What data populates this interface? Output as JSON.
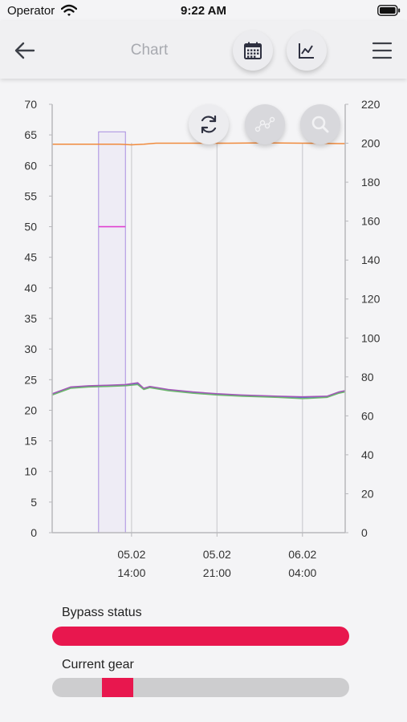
{
  "status_bar": {
    "operator": "Operator",
    "time": "9:22 AM"
  },
  "nav": {
    "title": "Chart",
    "icons": [
      "back-arrow-icon",
      "calendar-icon",
      "line-chart-icon",
      "hamburger-menu-icon"
    ]
  },
  "chart_controls": {
    "icons": [
      "refresh-icon",
      "data-points-icon",
      "zoom-icon"
    ]
  },
  "chart_data": {
    "type": "line",
    "y_left": {
      "min": 0,
      "max": 70,
      "ticks": [
        0,
        5,
        10,
        15,
        20,
        25,
        30,
        35,
        40,
        45,
        50,
        55,
        60,
        65,
        70
      ]
    },
    "y_right": {
      "min": 0,
      "max": 220,
      "ticks": [
        0,
        20,
        40,
        60,
        80,
        100,
        120,
        140,
        160,
        180,
        200,
        220
      ]
    },
    "x": {
      "min": 7.5,
      "max": 31.5,
      "unit": "hours",
      "ticks": [
        {
          "x": 14,
          "date": "05.02",
          "time": "14:00"
        },
        {
          "x": 21,
          "date": "05.02",
          "time": "21:00"
        },
        {
          "x": 28,
          "date": "06.02",
          "time": "04:00"
        }
      ]
    },
    "series": [
      {
        "color": "#f08a3c",
        "axis": "right",
        "points": [
          [
            7.5,
            199.5
          ],
          [
            10,
            199.5
          ],
          [
            12,
            199.5
          ],
          [
            13,
            199.5
          ],
          [
            14,
            199.2
          ],
          [
            15,
            199.5
          ],
          [
            16,
            200
          ],
          [
            19,
            200
          ],
          [
            22,
            200
          ],
          [
            25,
            200.2
          ],
          [
            28,
            200
          ],
          [
            31,
            199.8
          ],
          [
            31.5,
            199.8
          ]
        ]
      },
      {
        "color": "#5a76c8",
        "axis": "left",
        "points": [
          [
            7.5,
            22.6
          ],
          [
            9,
            23.7
          ],
          [
            10.5,
            23.9
          ],
          [
            12,
            24.0
          ],
          [
            13.5,
            24.1
          ],
          [
            14.5,
            24.3
          ],
          [
            15,
            23.5
          ],
          [
            15.5,
            23.8
          ],
          [
            17,
            23.3
          ],
          [
            19,
            22.9
          ],
          [
            21,
            22.6
          ],
          [
            23,
            22.4
          ],
          [
            26,
            22.2
          ],
          [
            28,
            22.1
          ],
          [
            30,
            22.2
          ],
          [
            31,
            22.9
          ],
          [
            31.5,
            23.1
          ]
        ]
      },
      {
        "color": "#a455b8",
        "axis": "left",
        "points": [
          [
            7.5,
            22.7
          ],
          [
            9,
            23.8
          ],
          [
            10.5,
            24.0
          ],
          [
            12,
            24.1
          ],
          [
            13.5,
            24.2
          ],
          [
            14.5,
            24.5
          ],
          [
            15,
            23.6
          ],
          [
            15.5,
            23.9
          ],
          [
            17,
            23.4
          ],
          [
            19,
            23.0
          ],
          [
            21,
            22.7
          ],
          [
            23,
            22.5
          ],
          [
            26,
            22.3
          ],
          [
            28,
            22.2
          ],
          [
            30,
            22.3
          ],
          [
            31,
            23.0
          ],
          [
            31.5,
            23.2
          ]
        ]
      },
      {
        "color": "#6cb86c",
        "axis": "left",
        "points": [
          [
            7.5,
            22.5
          ],
          [
            9,
            23.6
          ],
          [
            10.5,
            23.8
          ],
          [
            12,
            23.9
          ],
          [
            13.5,
            24.0
          ],
          [
            14.5,
            24.2
          ],
          [
            15,
            23.4
          ],
          [
            15.5,
            23.7
          ],
          [
            17,
            23.2
          ],
          [
            19,
            22.8
          ],
          [
            21,
            22.5
          ],
          [
            23,
            22.3
          ],
          [
            26,
            22.1
          ],
          [
            28,
            21.9
          ],
          [
            30,
            22.1
          ],
          [
            31,
            22.8
          ],
          [
            31.5,
            23.0
          ]
        ]
      },
      {
        "color": "#e040d0",
        "axis": "left",
        "points": [
          [
            11.3,
            50
          ],
          [
            13.5,
            50
          ]
        ]
      }
    ],
    "selection": {
      "x_start": 11.3,
      "x_end": 13.5,
      "y_top": 65.5,
      "color": "#a98de0"
    },
    "grid_lines_x": [
      14,
      21,
      28
    ]
  },
  "bypass": {
    "label": "Bypass status",
    "value_pct": 100,
    "color": "#e8174e"
  },
  "gear": {
    "label": "Current gear",
    "value": 2,
    "max": 6,
    "color": "#e8174e"
  }
}
